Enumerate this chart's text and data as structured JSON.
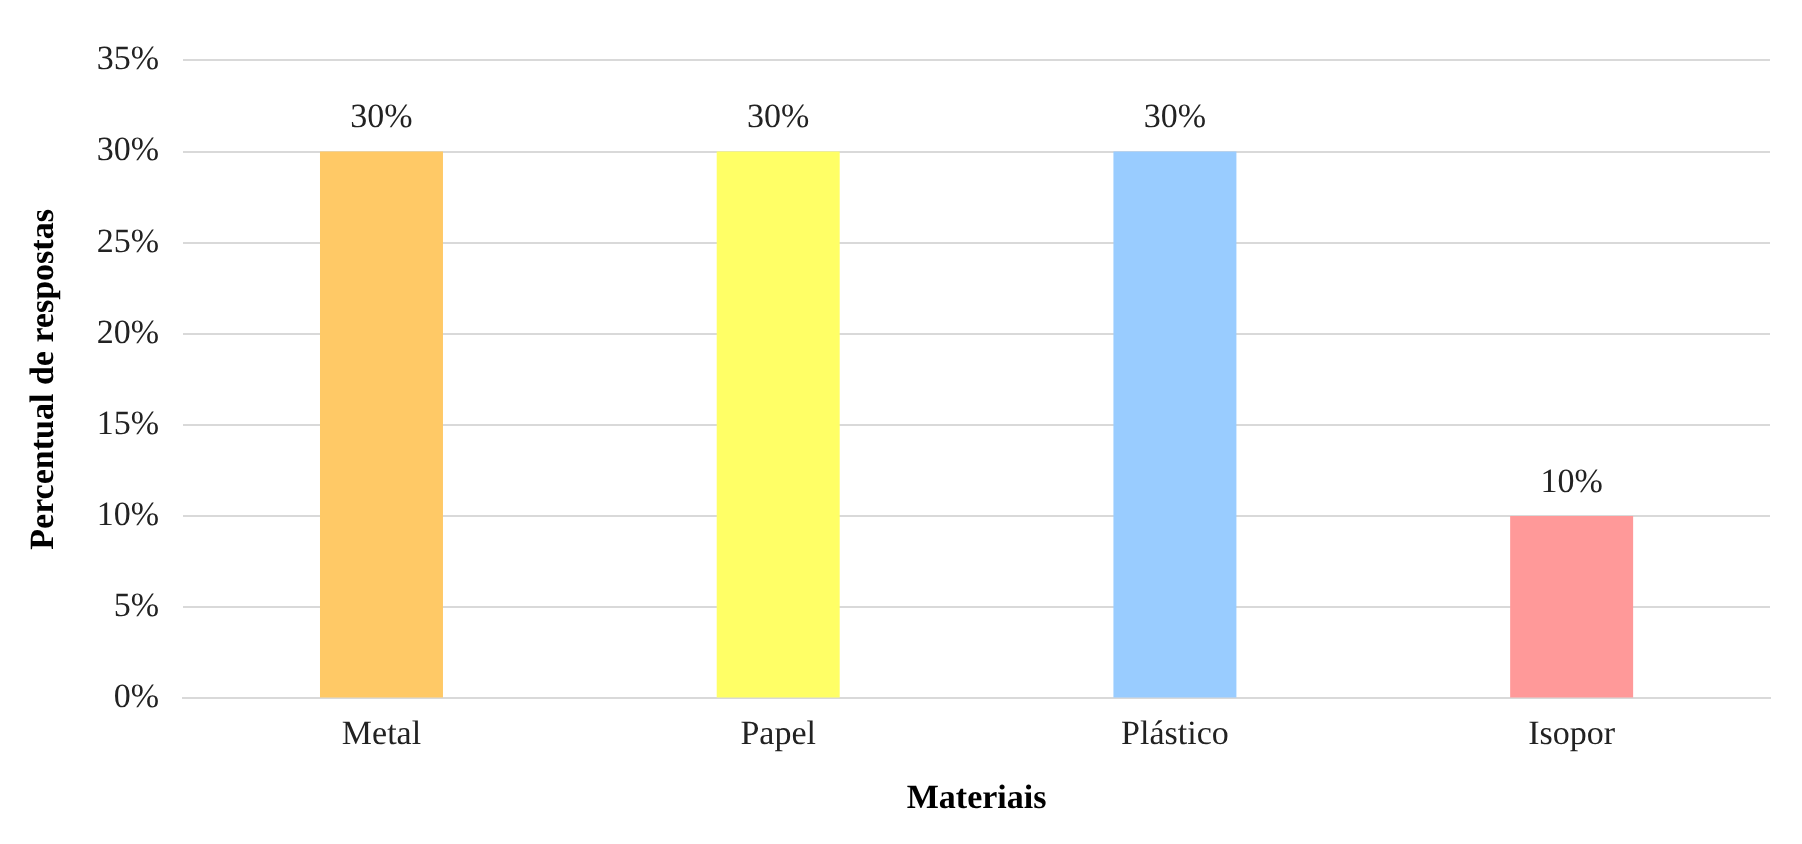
{
  "chart_data": {
    "type": "bar",
    "xlabel": "Materiais",
    "ylabel": "Percentual de respostas",
    "categories": [
      "Metal",
      "Papel",
      "Plástico",
      "Isopor"
    ],
    "values": [
      30,
      30,
      30,
      10
    ],
    "colors": [
      "#ffc966",
      "#ffff66",
      "#99ccff",
      "#ff9999"
    ],
    "value_labels": [
      "30%",
      "30%",
      "30%",
      "10%"
    ],
    "ylim": [
      0,
      35
    ],
    "yticks": [
      {
        "value": 0,
        "label": "0%"
      },
      {
        "value": 5,
        "label": "5%"
      },
      {
        "value": 10,
        "label": "10%"
      },
      {
        "value": 15,
        "label": "15%"
      },
      {
        "value": 20,
        "label": "20%"
      },
      {
        "value": 25,
        "label": "25%"
      },
      {
        "value": 30,
        "label": "30%"
      },
      {
        "value": 35,
        "label": "35%"
      }
    ],
    "grid": "y",
    "legend": false
  }
}
